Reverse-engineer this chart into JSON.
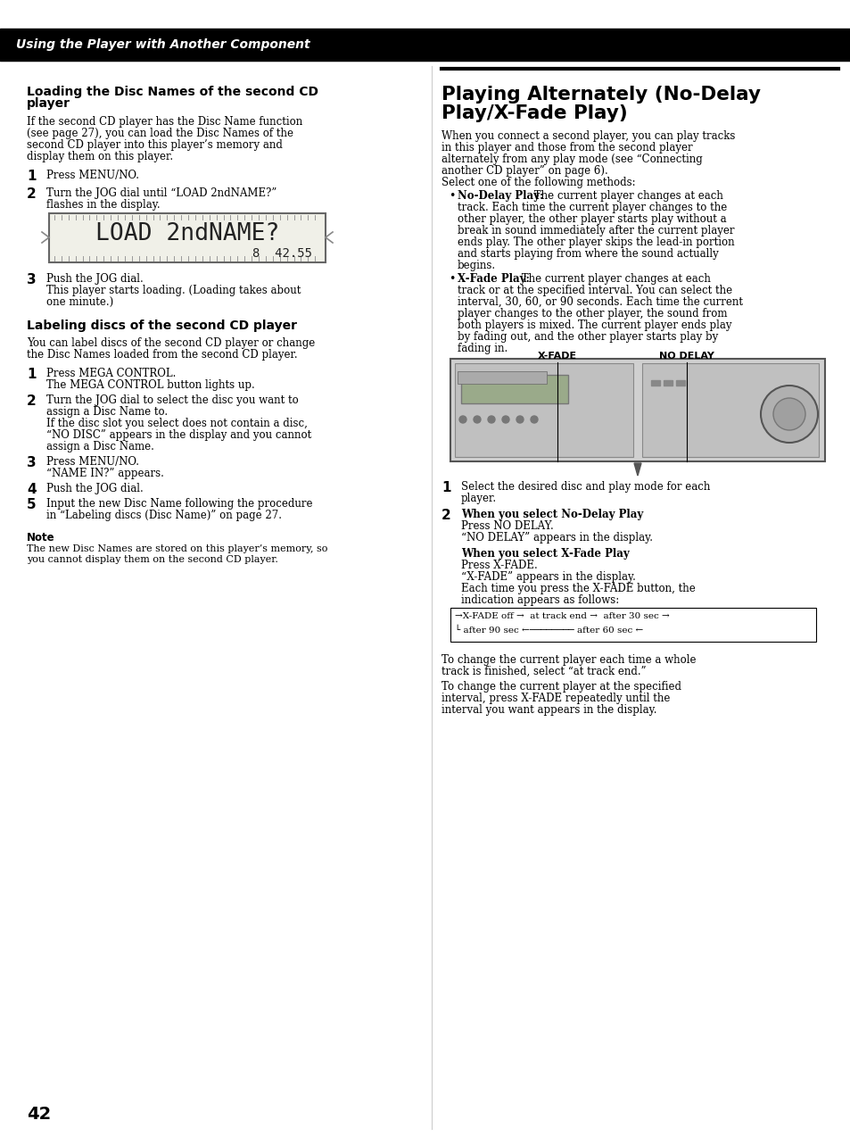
{
  "page_num": "42",
  "header_text": "Using the Player with Another Component",
  "header_bg": "#000000",
  "header_fg": "#ffffff",
  "bg_color": "#ffffff",
  "left_col": {
    "section1_title": "Loading the Disc Names of the second CD player",
    "section1_intro": "If the second CD player has the Disc Name function (see page 27), you can load the Disc Names of the second CD player into this player’s memory and display them on this player.",
    "display_text_main": "LOAD 2ndNAME?",
    "display_text_sub": "8  42.55",
    "section2_title": "Labeling discs of the second CD player",
    "section2_intro": "You can label discs of the second CD player or change the Disc Names loaded from the second CD player.",
    "note_title": "Note",
    "note_text": "The new Disc Names are stored on this player’s memory, so you cannot display them on the second CD player."
  },
  "right_col": {
    "big_title_line1": "Playing Alternately (No-Delay",
    "big_title_line2": "Play/X-Fade Play)",
    "xfade_label": "X-FADE",
    "nodelay_label": "NO DELAY",
    "footer_text1": "To change the current player each time a whole track is finished, select “at track end.”",
    "footer_text2": "To change the current player at the specified interval, press X-FADE repeatedly until the interval you want appears in the display."
  }
}
